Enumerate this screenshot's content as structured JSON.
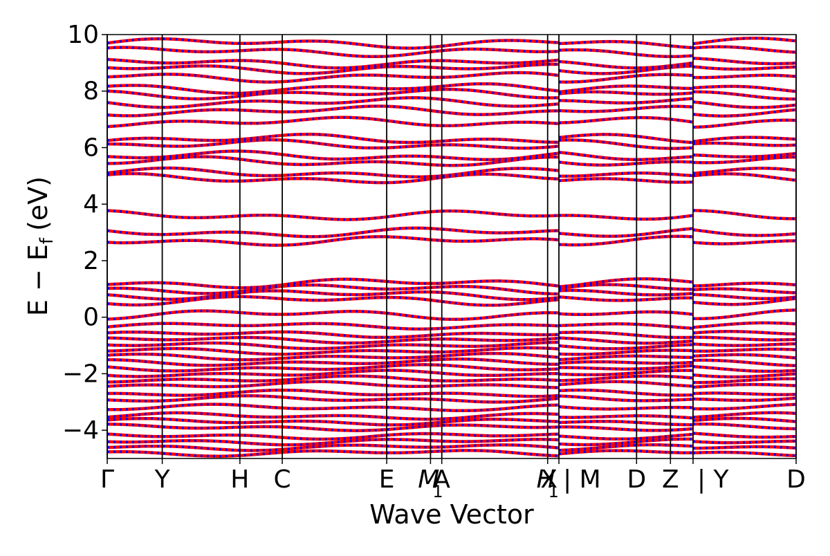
{
  "chart_data": {
    "type": "line",
    "xlabel": "Wave Vector",
    "ylabel_main": "E − E",
    "ylabel_sub": "f",
    "ylabel_unit": "(eV)",
    "ylim": [
      -5,
      10
    ],
    "yticks": [
      -4,
      -2,
      0,
      2,
      4,
      6,
      8,
      10
    ],
    "ytick_labels": [
      "−4",
      "−2",
      "0",
      "2",
      "4",
      "6",
      "8",
      "10"
    ],
    "xlim": [
      0,
      1
    ],
    "kpoints": [
      {
        "label": "Γ",
        "x": 0.0
      },
      {
        "label": "Y",
        "x": 0.0799
      },
      {
        "label": "H",
        "x": 0.1926
      },
      {
        "label": "C",
        "x": 0.2541
      },
      {
        "label": "E",
        "x": 0.4057
      },
      {
        "label": "M",
        "sub": "1",
        "x": 0.4693
      },
      {
        "label": "A",
        "x": 0.4857
      },
      {
        "label": "H",
        "sub": "1",
        "x": 0.6393
      },
      {
        "label": "X",
        "x": 0.6557
      },
      {
        "label": "| M",
        "x": 0.6557
      },
      {
        "label": "D",
        "x": 0.7684
      },
      {
        "label": "Z",
        "x": 0.8176
      },
      {
        "label": "| Y",
        "x": 0.8504
      },
      {
        "label": "D",
        "x": 1.0
      }
    ],
    "path_breaks": [
      0.6557,
      0.8504
    ],
    "series": [
      {
        "color": "#ff0000",
        "style": "solid",
        "levels": [
          9.7,
          9.4,
          9.0,
          8.8,
          8.5,
          8.1,
          7.9,
          7.6,
          7.3,
          6.9,
          6.3,
          6.1,
          5.7,
          5.5,
          5.1,
          4.9,
          3.6,
          3.0,
          2.7,
          1.2,
          1.0,
          0.8,
          0.6,
          0.1,
          -0.3,
          -0.6,
          -0.8,
          -1.0,
          -1.2,
          -1.4,
          -1.6,
          -1.8,
          -2.0,
          -2.2,
          -2.4,
          -2.7,
          -2.9,
          -3.2,
          -3.5,
          -3.7,
          -3.9,
          -4.2,
          -4.4,
          -4.6,
          -4.8
        ]
      },
      {
        "color": "#0000ff",
        "style": "dotted",
        "levels": [
          9.7,
          9.4,
          9.0,
          8.8,
          8.5,
          8.1,
          7.9,
          7.6,
          7.3,
          6.9,
          6.3,
          6.1,
          5.7,
          5.5,
          5.1,
          4.9,
          3.6,
          3.0,
          2.7,
          1.2,
          1.0,
          0.8,
          0.6,
          0.1,
          -0.3,
          -0.6,
          -0.8,
          -1.0,
          -1.2,
          -1.4,
          -1.6,
          -1.8,
          -2.0,
          -2.2,
          -2.4,
          -2.7,
          -2.9,
          -3.2,
          -3.5,
          -3.7,
          -3.9,
          -4.2,
          -4.4,
          -4.6,
          -4.8
        ]
      }
    ],
    "grid": false,
    "legend": "none"
  }
}
